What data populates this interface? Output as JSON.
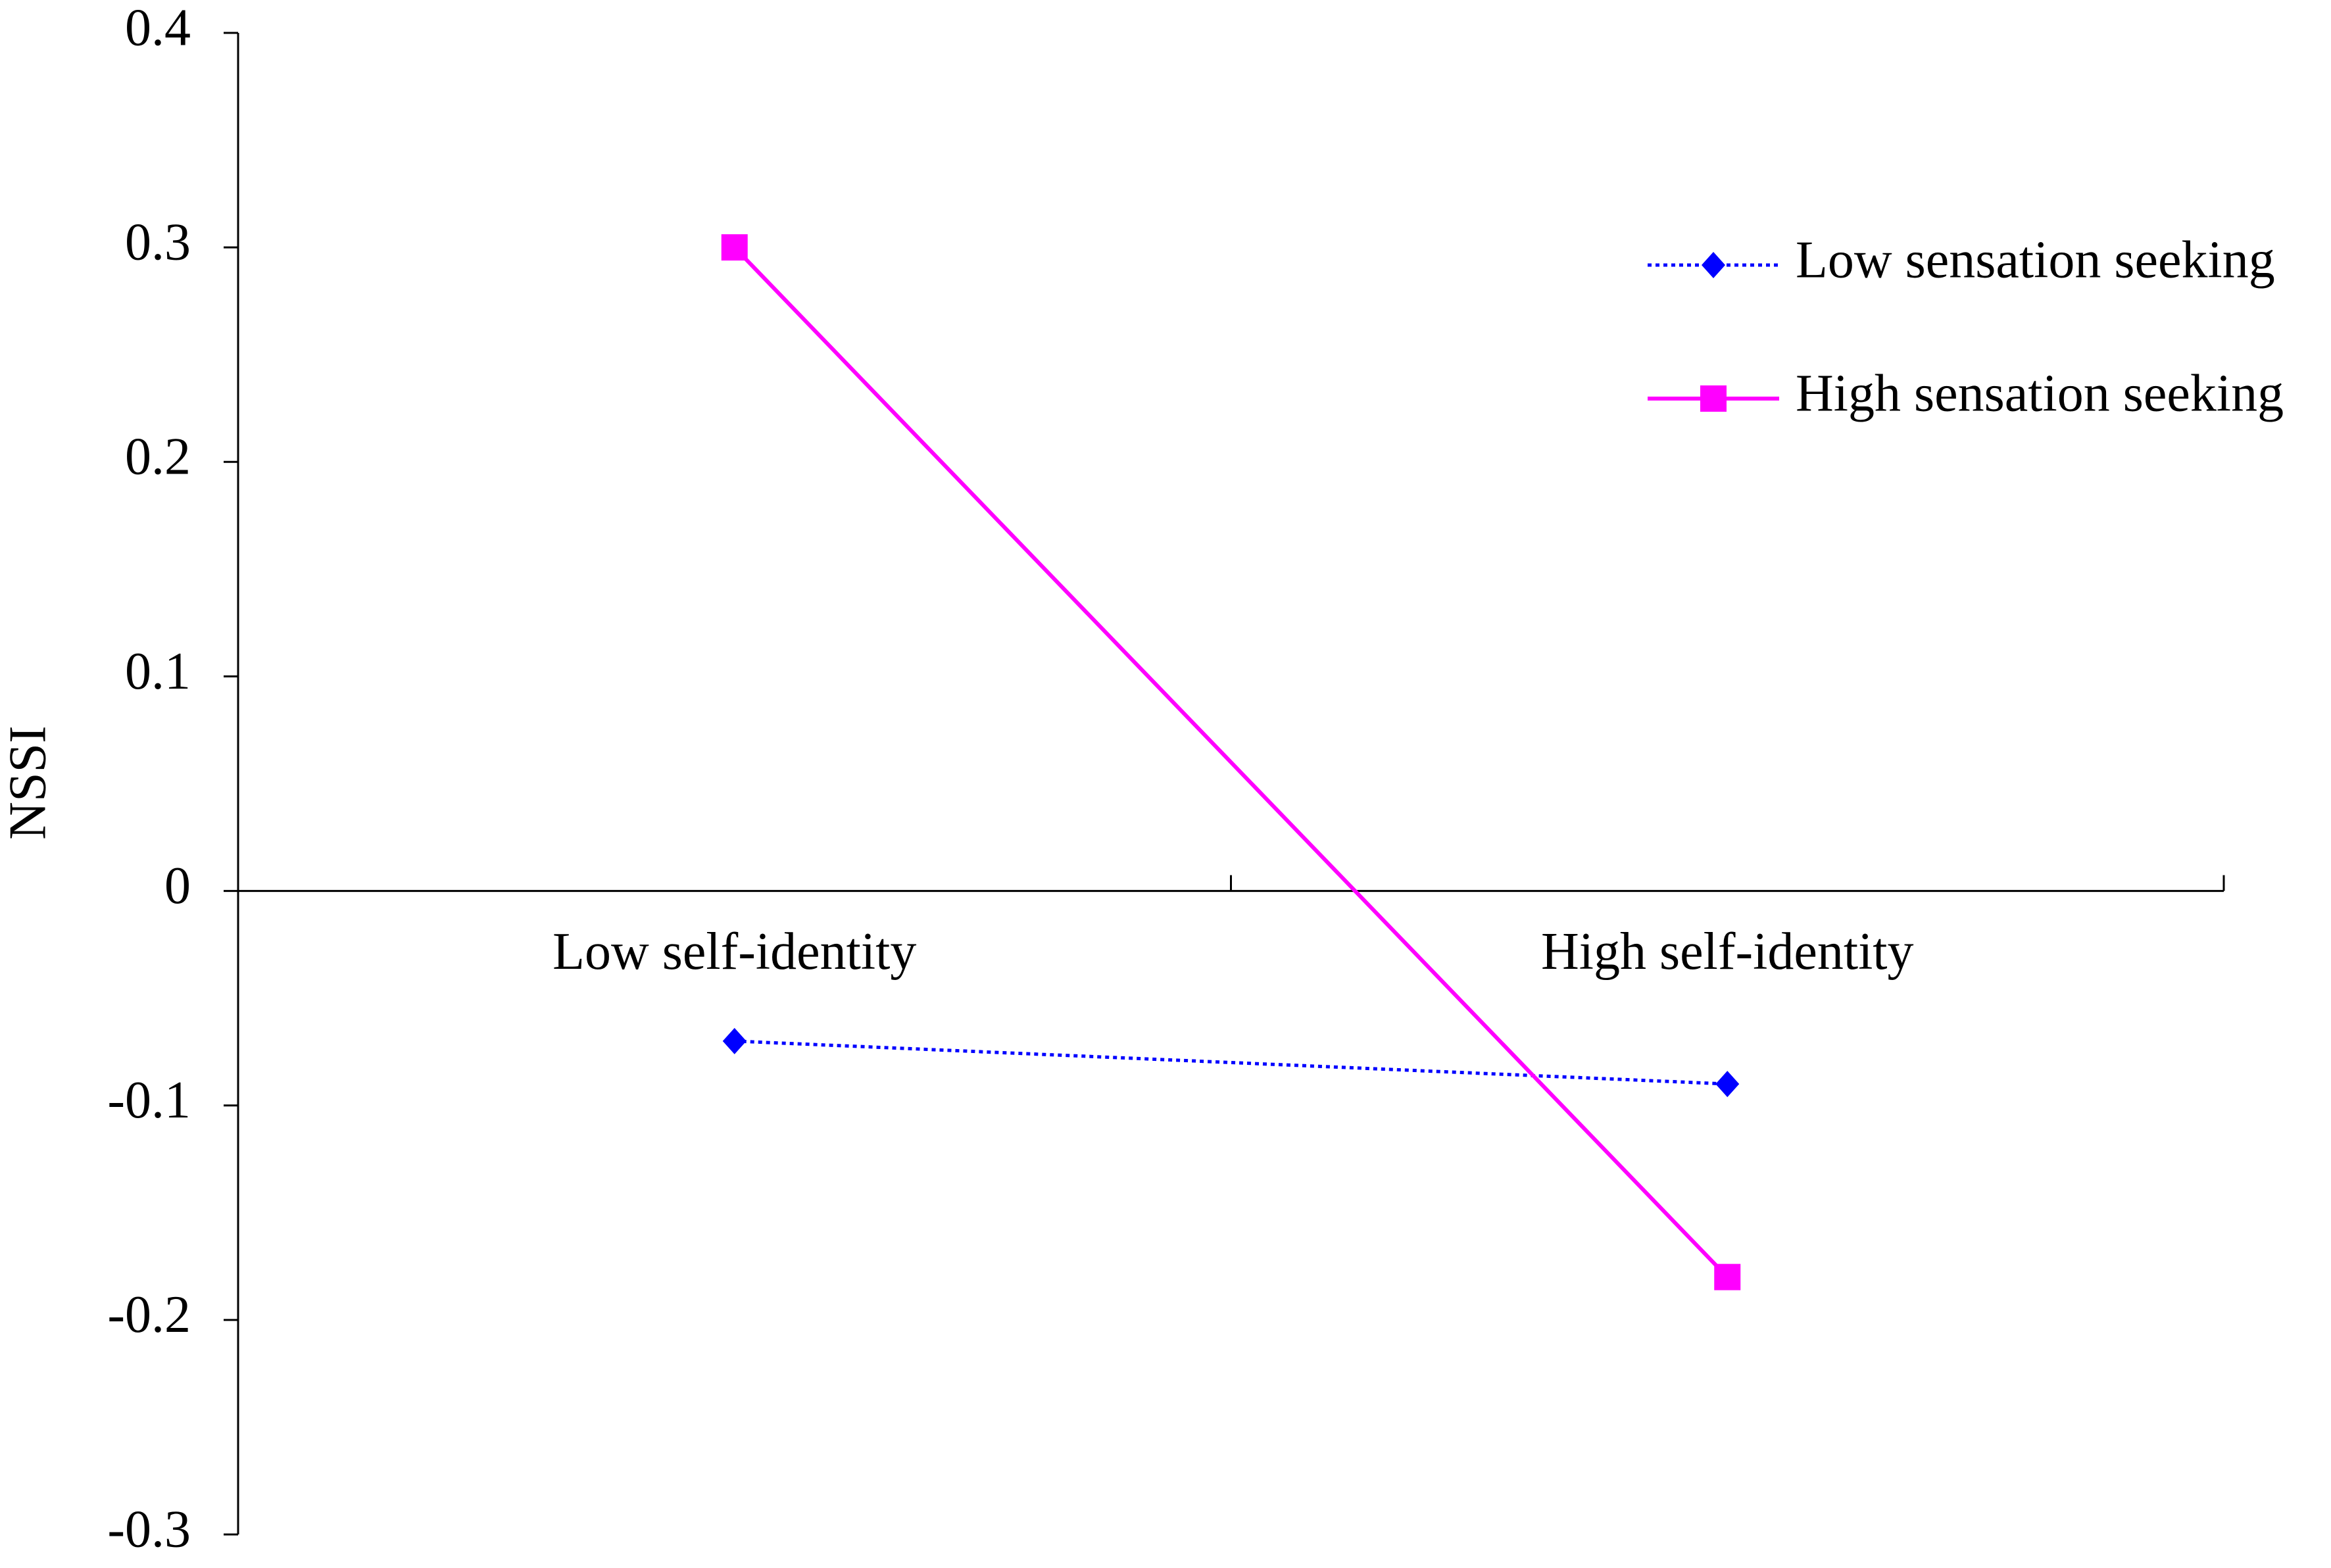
{
  "chart_data": {
    "type": "line",
    "y_label": "NSSI",
    "categories": [
      "Low self-identity",
      "High self-identity"
    ],
    "series": [
      {
        "name": "Low sensation seeking",
        "color": "#0000ff",
        "marker": "diamond",
        "dash": "dotted",
        "values": [
          -0.07,
          -0.09
        ]
      },
      {
        "name": "High sensation seeking",
        "color": "#ff00ff",
        "marker": "square",
        "dash": "solid",
        "values": [
          0.3,
          -0.18
        ]
      }
    ],
    "ylim": [
      -0.3,
      0.4
    ],
    "yticks": [
      -0.3,
      -0.2,
      -0.1,
      0,
      0.1,
      0.2,
      0.3,
      0.4
    ],
    "grid": false,
    "legend": "upper right"
  }
}
